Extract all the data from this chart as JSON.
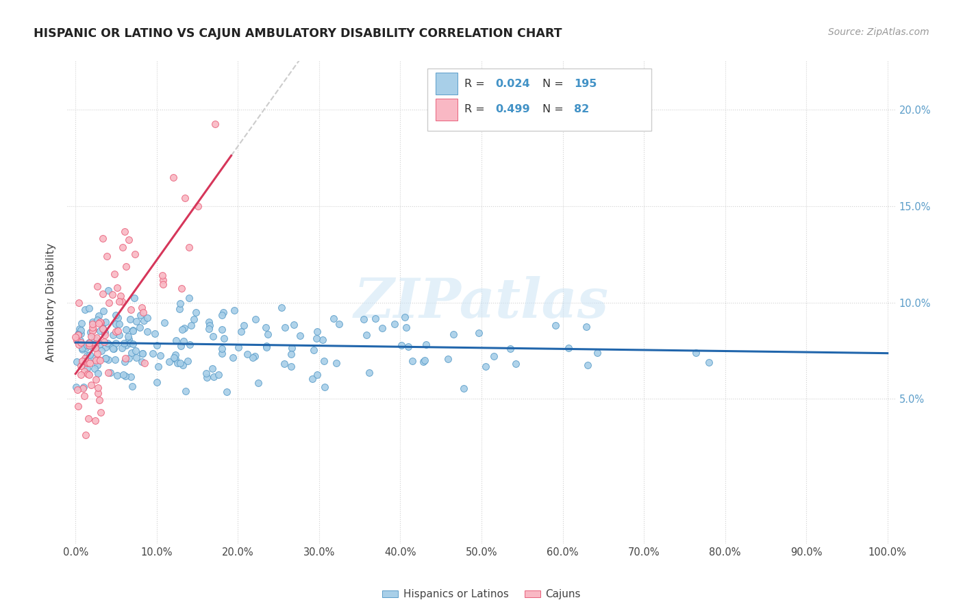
{
  "title": "HISPANIC OR LATINO VS CAJUN AMBULATORY DISABILITY CORRELATION CHART",
  "source": "Source: ZipAtlas.com",
  "ylabel": "Ambulatory Disability",
  "xlim": [
    -0.01,
    1.01
  ],
  "ylim": [
    -0.025,
    0.225
  ],
  "xticks": [
    0.0,
    0.1,
    0.2,
    0.3,
    0.4,
    0.5,
    0.6,
    0.7,
    0.8,
    0.9,
    1.0
  ],
  "xtick_labels": [
    "0.0%",
    "10.0%",
    "20.0%",
    "30.0%",
    "40.0%",
    "50.0%",
    "60.0%",
    "70.0%",
    "80.0%",
    "90.0%",
    "100.0%"
  ],
  "yticks": [
    0.05,
    0.1,
    0.15,
    0.2
  ],
  "ytick_labels": [
    "5.0%",
    "10.0%",
    "15.0%",
    "20.0%"
  ],
  "blue_color": "#a8cfe8",
  "blue_edge": "#5b9dc9",
  "pink_color": "#f9b8c4",
  "pink_edge": "#e8607a",
  "trend_blue": "#2166ac",
  "trend_pink": "#d6365a",
  "dashed_color": "#cccccc",
  "legend_R_blue": "0.024",
  "legend_N_blue": "195",
  "legend_R_pink": "0.499",
  "legend_N_pink": "82",
  "legend_label_blue": "Hispanics or Latinos",
  "legend_label_pink": "Cajuns",
  "watermark": "ZIPatlas",
  "blue_seed": 42,
  "pink_seed": 7
}
